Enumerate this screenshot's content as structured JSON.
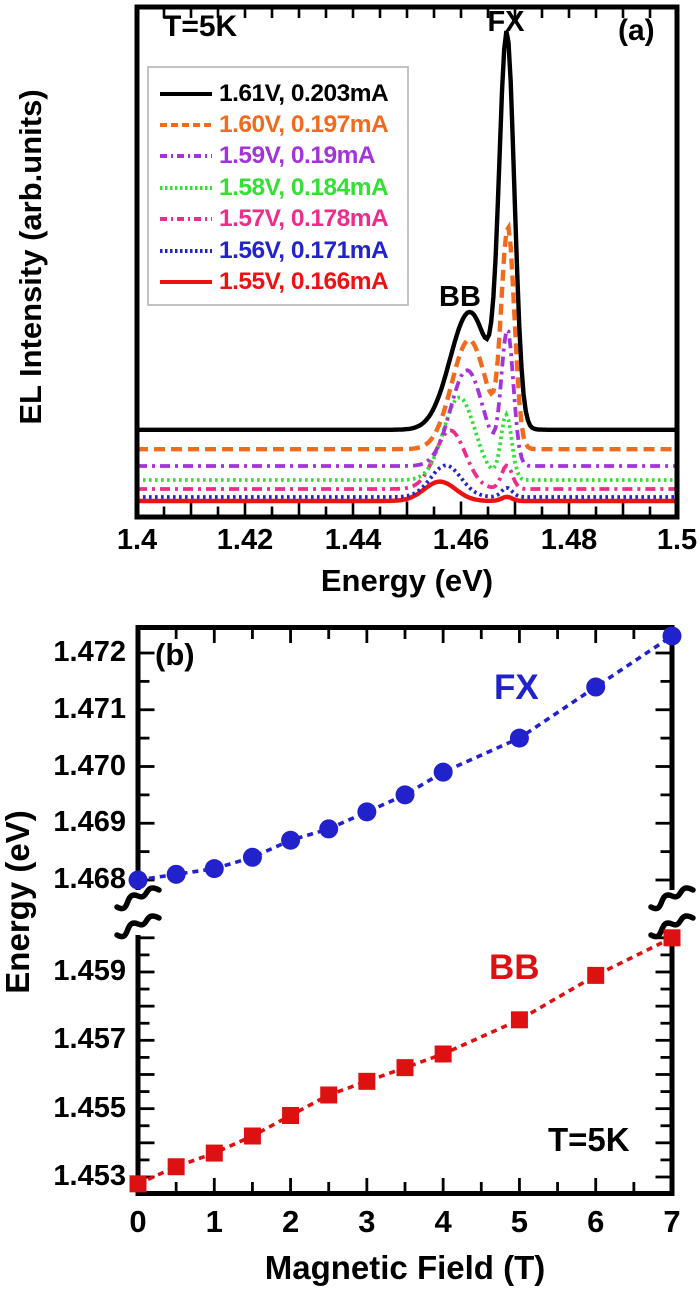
{
  "chart_data": [
    {
      "id": "panel_a",
      "type": "line",
      "title": "",
      "xlabel": "Energy (eV)",
      "ylabel": "EL Intensity (arb.units)",
      "xlim": [
        1.4,
        1.5
      ],
      "x_tick_values": [
        1.4,
        1.42,
        1.44,
        1.46,
        1.48,
        1.5
      ],
      "x_tick_labels": [
        "1.4",
        "1.42",
        "1.44",
        "1.46",
        "1.48",
        "1.5"
      ],
      "x_minor_step": 0.005,
      "grid": false,
      "legend_position": "upper-left",
      "annotations": {
        "temperature": "T=5K",
        "panel": "(a)",
        "fx": "FX",
        "bb": "BB"
      },
      "note": "Seven EL spectra, vertically offset; each = baseline + BB gaussian + FX gaussian (amplitudes as fraction of plot height, centers/sigmas in eV)",
      "series": [
        {
          "label": "1.61V, 0.203mA",
          "color": "#000000",
          "style": "solid",
          "baseline": 0.171,
          "bb": {
            "center": 1.4616,
            "amp": 0.231,
            "sigma": 0.0036
          },
          "fx": {
            "center": 1.4685,
            "amp": 0.745,
            "sigma": 0.0014
          }
        },
        {
          "label": "1.60V, 0.197mA",
          "color": "#F26B1D",
          "style": "dashed",
          "baseline": 0.133,
          "bb": {
            "center": 1.4615,
            "amp": 0.214,
            "sigma": 0.0032
          },
          "fx": {
            "center": 1.4687,
            "amp": 0.42,
            "sigma": 0.0012
          }
        },
        {
          "label": "1.59V, 0.19mA",
          "color": "#A434D9",
          "style": "dashdot",
          "baseline": 0.1,
          "bb": {
            "center": 1.4611,
            "amp": 0.188,
            "sigma": 0.003
          },
          "fx": {
            "center": 1.4686,
            "amp": 0.261,
            "sigma": 0.0011
          }
        },
        {
          "label": "1.58V, 0.184mA",
          "color": "#33E033",
          "style": "dotted",
          "baseline": 0.0725,
          "bb": {
            "center": 1.4597,
            "amp": 0.162,
            "sigma": 0.0029
          },
          "fx": {
            "center": 1.4684,
            "amp": 0.126,
            "sigma": 0.001
          }
        },
        {
          "label": "1.57V, 0.178mA",
          "color": "#EE2D8A",
          "style": "dashdot",
          "baseline": 0.0549,
          "bb": {
            "center": 1.458,
            "amp": 0.115,
            "sigma": 0.0028
          },
          "fx": {
            "center": 1.4685,
            "amp": 0.046,
            "sigma": 0.001
          }
        },
        {
          "label": "1.56V, 0.171mA",
          "color": "#2323CC",
          "style": "dotted",
          "baseline": 0.0392,
          "bb": {
            "center": 1.4572,
            "amp": 0.062,
            "sigma": 0.0028
          },
          "fx": {
            "center": 1.4685,
            "amp": 0.018,
            "sigma": 0.001
          }
        },
        {
          "label": "1.55V, 0.166mA",
          "color": "#EE1111",
          "style": "solid",
          "baseline": 0.0314,
          "bb": {
            "center": 1.4561,
            "amp": 0.038,
            "sigma": 0.0029
          },
          "fx": {
            "center": 1.4685,
            "amp": 0.008,
            "sigma": 0.001
          }
        }
      ]
    },
    {
      "id": "panel_b",
      "type": "scatter",
      "title": "",
      "xlabel": "Magnetic Field (T)",
      "ylabel": "Energy (eV)",
      "xlim": [
        0,
        7
      ],
      "x_tick_values": [
        0,
        1,
        2,
        3,
        4,
        5,
        6,
        7
      ],
      "x_tick_labels": [
        "0",
        "1",
        "2",
        "3",
        "4",
        "5",
        "6",
        "7"
      ],
      "x_minor_step": 0.5,
      "grid": false,
      "broken_axis": true,
      "upper": {
        "ylim": [
          1.4677,
          1.4725
        ],
        "tick_values": [
          1.468,
          1.469,
          1.47,
          1.471,
          1.472
        ],
        "tick_labels": [
          "1.468",
          "1.469",
          "1.470",
          "1.471",
          "1.472"
        ],
        "y_minor_step": 0.0005
      },
      "lower": {
        "ylim": [
          1.4525,
          1.4604
        ],
        "tick_values": [
          1.453,
          1.455,
          1.457,
          1.459
        ],
        "tick_labels": [
          "1.453",
          "1.455",
          "1.457",
          "1.459"
        ],
        "y_minor_step": 0.0005
      },
      "annotations": {
        "panel": "(b)",
        "fx": "FX",
        "bb": "BB",
        "temperature": "T=5K"
      },
      "series": [
        {
          "name": "FX",
          "axis": "upper",
          "marker": "circle",
          "color": "#2222CC",
          "line": "dashed",
          "x": [
            0,
            0.5,
            1,
            1.5,
            2,
            2.5,
            3,
            3.5,
            4,
            5,
            6,
            7
          ],
          "y": [
            1.468,
            1.4681,
            1.4682,
            1.4684,
            1.4687,
            1.4689,
            1.4692,
            1.4695,
            1.4699,
            1.4705,
            1.4714,
            1.4723
          ]
        },
        {
          "name": "BB",
          "axis": "lower",
          "marker": "square",
          "color": "#DD1111",
          "line": "dashed",
          "x": [
            0,
            0.5,
            1,
            1.5,
            2,
            2.5,
            3,
            3.5,
            4,
            5,
            6,
            7
          ],
          "y": [
            1.4528,
            1.4533,
            1.4537,
            1.4542,
            1.4548,
            1.4554,
            1.4558,
            1.4562,
            1.4566,
            1.4576,
            1.4589,
            1.46
          ]
        }
      ]
    }
  ]
}
